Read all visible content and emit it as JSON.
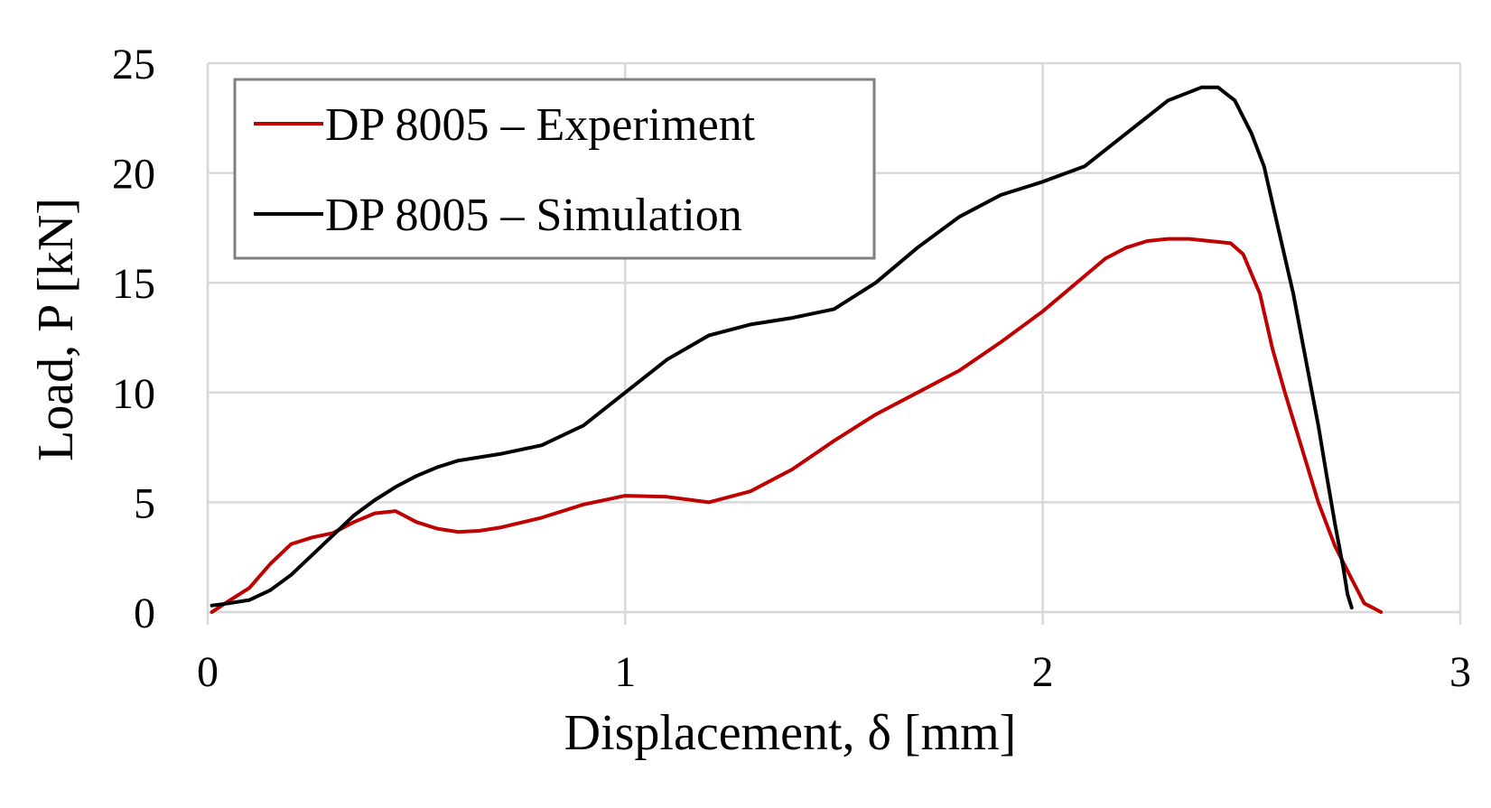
{
  "chart_data": {
    "type": "line",
    "title": "",
    "xlabel": "Displacement, δ [mm]",
    "ylabel": "Load, P [kN]",
    "xlim": [
      0,
      3
    ],
    "ylim": [
      0,
      25
    ],
    "xticks": [
      0,
      1,
      2,
      3
    ],
    "yticks": [
      0,
      5,
      10,
      15,
      20,
      25
    ],
    "xtick_labels": [
      "0",
      "1",
      "2",
      "3"
    ],
    "ytick_labels": [
      "0",
      "5",
      "10",
      "15",
      "20",
      "25"
    ],
    "grid": true,
    "legend_position": "top-left",
    "series": [
      {
        "name": "DP 8005 – Experiment",
        "color": "#c00000",
        "points": [
          [
            0.01,
            0.0
          ],
          [
            0.05,
            0.5
          ],
          [
            0.1,
            1.1
          ],
          [
            0.15,
            2.2
          ],
          [
            0.2,
            3.1
          ],
          [
            0.25,
            3.4
          ],
          [
            0.3,
            3.6
          ],
          [
            0.35,
            4.1
          ],
          [
            0.4,
            4.5
          ],
          [
            0.45,
            4.6
          ],
          [
            0.5,
            4.1
          ],
          [
            0.55,
            3.8
          ],
          [
            0.6,
            3.65
          ],
          [
            0.65,
            3.7
          ],
          [
            0.7,
            3.85
          ],
          [
            0.8,
            4.3
          ],
          [
            0.9,
            4.9
          ],
          [
            1.0,
            5.3
          ],
          [
            1.1,
            5.25
          ],
          [
            1.2,
            5.0
          ],
          [
            1.3,
            5.5
          ],
          [
            1.4,
            6.5
          ],
          [
            1.5,
            7.8
          ],
          [
            1.6,
            9.0
          ],
          [
            1.7,
            10.0
          ],
          [
            1.8,
            11.0
          ],
          [
            1.9,
            12.3
          ],
          [
            2.0,
            13.7
          ],
          [
            2.1,
            15.3
          ],
          [
            2.15,
            16.1
          ],
          [
            2.2,
            16.6
          ],
          [
            2.25,
            16.9
          ],
          [
            2.3,
            17.0
          ],
          [
            2.35,
            17.0
          ],
          [
            2.4,
            16.9
          ],
          [
            2.45,
            16.8
          ],
          [
            2.48,
            16.3
          ],
          [
            2.52,
            14.5
          ],
          [
            2.55,
            12.0
          ],
          [
            2.58,
            10.0
          ],
          [
            2.62,
            7.5
          ],
          [
            2.66,
            5.0
          ],
          [
            2.7,
            3.0
          ],
          [
            2.74,
            1.5
          ],
          [
            2.77,
            0.4
          ],
          [
            2.81,
            0.0
          ]
        ]
      },
      {
        "name": "DP 8005 – Simulation",
        "color": "#000000",
        "points": [
          [
            0.01,
            0.3
          ],
          [
            0.05,
            0.4
          ],
          [
            0.1,
            0.55
          ],
          [
            0.15,
            1.0
          ],
          [
            0.2,
            1.7
          ],
          [
            0.25,
            2.6
          ],
          [
            0.3,
            3.5
          ],
          [
            0.35,
            4.4
          ],
          [
            0.4,
            5.1
          ],
          [
            0.45,
            5.7
          ],
          [
            0.5,
            6.2
          ],
          [
            0.55,
            6.6
          ],
          [
            0.6,
            6.9
          ],
          [
            0.7,
            7.2
          ],
          [
            0.8,
            7.6
          ],
          [
            0.9,
            8.5
          ],
          [
            1.0,
            10.0
          ],
          [
            1.1,
            11.5
          ],
          [
            1.2,
            12.6
          ],
          [
            1.3,
            13.1
          ],
          [
            1.4,
            13.4
          ],
          [
            1.5,
            13.8
          ],
          [
            1.6,
            15.0
          ],
          [
            1.7,
            16.6
          ],
          [
            1.8,
            18.0
          ],
          [
            1.9,
            19.0
          ],
          [
            2.0,
            19.6
          ],
          [
            2.1,
            20.3
          ],
          [
            2.2,
            21.8
          ],
          [
            2.3,
            23.3
          ],
          [
            2.38,
            23.9
          ],
          [
            2.42,
            23.9
          ],
          [
            2.46,
            23.3
          ],
          [
            2.5,
            21.8
          ],
          [
            2.53,
            20.3
          ],
          [
            2.56,
            17.8
          ],
          [
            2.6,
            14.5
          ],
          [
            2.63,
            11.5
          ],
          [
            2.66,
            8.5
          ],
          [
            2.68,
            6.2
          ],
          [
            2.7,
            4.0
          ],
          [
            2.72,
            2.0
          ],
          [
            2.73,
            0.8
          ],
          [
            2.74,
            0.2
          ]
        ]
      }
    ]
  }
}
